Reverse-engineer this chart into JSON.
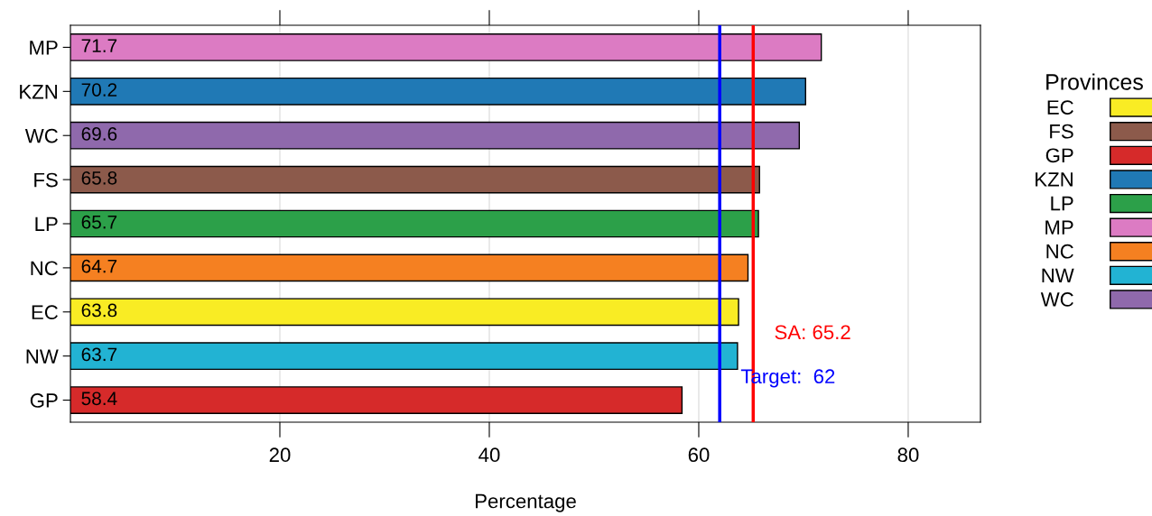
{
  "chart_data": {
    "type": "bar",
    "orientation": "horizontal",
    "xlabel": "Percentage",
    "legend_title": "Provinces",
    "categories": [
      "MP",
      "KZN",
      "WC",
      "FS",
      "LP",
      "NC",
      "EC",
      "NW",
      "GP"
    ],
    "series": [
      {
        "name": "EC",
        "color": "#f9ec24",
        "values": [
          null,
          null,
          null,
          null,
          null,
          null,
          63.8,
          null,
          null
        ]
      },
      {
        "name": "FS",
        "color": "#8c5a4b",
        "values": [
          null,
          null,
          null,
          65.8,
          null,
          null,
          null,
          null,
          null
        ]
      },
      {
        "name": "GP",
        "color": "#d62a2a",
        "values": [
          null,
          null,
          null,
          null,
          null,
          null,
          null,
          null,
          58.4
        ]
      },
      {
        "name": "KZN",
        "color": "#2079b5",
        "values": [
          null,
          70.2,
          null,
          null,
          null,
          null,
          null,
          null,
          null
        ]
      },
      {
        "name": "LP",
        "color": "#2ca049",
        "values": [
          null,
          null,
          null,
          null,
          65.7,
          null,
          null,
          null,
          null
        ]
      },
      {
        "name": "MP",
        "color": "#dc7bc3",
        "values": [
          71.7,
          null,
          null,
          null,
          null,
          null,
          null,
          null,
          null
        ]
      },
      {
        "name": "NC",
        "color": "#f58021",
        "values": [
          null,
          null,
          null,
          null,
          null,
          64.7,
          null,
          null,
          null
        ]
      },
      {
        "name": "NW",
        "color": "#22b3d3",
        "values": [
          null,
          null,
          null,
          null,
          null,
          null,
          null,
          63.7,
          null
        ]
      },
      {
        "name": "WC",
        "color": "#8f69ac",
        "values": [
          null,
          null,
          69.6,
          null,
          null,
          null,
          null,
          null,
          null
        ]
      }
    ],
    "data_labels": true,
    "xlim": [
      0,
      86.9
    ],
    "xticks": [
      20,
      40,
      60,
      80
    ],
    "grid": "x",
    "legend": "right",
    "ref_lines": [
      {
        "axis": "x",
        "value": 62,
        "label": "Target:  62",
        "color": "#0000ff"
      },
      {
        "axis": "x",
        "value": 65.2,
        "label": "SA: 65.2",
        "color": "#ff0000"
      }
    ]
  }
}
